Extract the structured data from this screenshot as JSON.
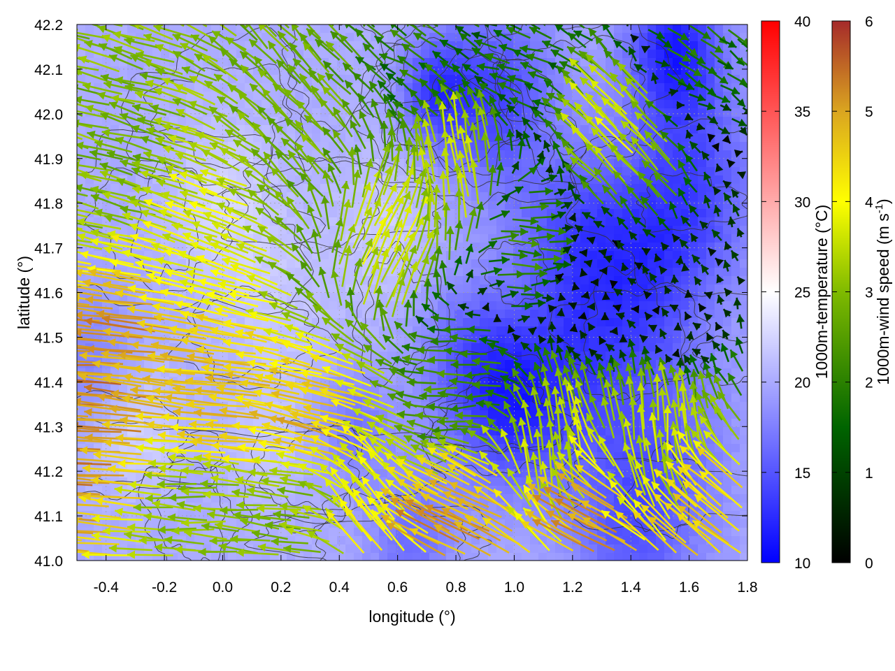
{
  "chart_data": {
    "type": "heatmap",
    "subtype": "temperature field with wind-vector arrows and terrain contours",
    "xlabel": "longitude (°)",
    "ylabel": "latitude (°)",
    "xlim": [
      -0.5,
      1.8
    ],
    "ylim": [
      41.0,
      42.2
    ],
    "x_ticks": [
      -0.4,
      -0.2,
      0.0,
      0.2,
      0.4,
      0.6,
      0.8,
      1.0,
      1.2,
      1.4,
      1.6,
      1.8
    ],
    "x_tick_labels": [
      "-0.4",
      "-0.2",
      "0.0",
      "0.2",
      "0.4",
      "0.6",
      "0.8",
      "1.0",
      "1.2",
      "1.4",
      "1.6",
      "1.8"
    ],
    "y_ticks": [
      41.0,
      41.1,
      41.2,
      41.3,
      41.4,
      41.5,
      41.6,
      41.7,
      41.8,
      41.9,
      42.0,
      42.1,
      42.2
    ],
    "y_tick_labels": [
      "41.0",
      "41.1",
      "41.2",
      "41.3",
      "41.4",
      "41.5",
      "41.6",
      "41.7",
      "41.8",
      "41.9",
      "42.0",
      "42.1",
      "42.2"
    ],
    "grid": true,
    "colorbars": [
      {
        "label": "1000m-temperature (°C)",
        "range": [
          10,
          40
        ],
        "ticks": [
          10,
          15,
          20,
          25,
          30,
          35,
          40
        ],
        "tick_labels": [
          "10",
          "15",
          "20",
          "25",
          "30",
          "35",
          "40"
        ],
        "stops": [
          {
            "value": 10,
            "color": "#0000ff"
          },
          {
            "value": 25,
            "color": "#ffffff"
          },
          {
            "value": 40,
            "color": "#ff0000"
          }
        ]
      },
      {
        "label_main": "1000m-wind speed (m s",
        "label_sup": "-1",
        "label_end": ")",
        "range": [
          0,
          6
        ],
        "ticks": [
          0,
          1,
          2,
          3,
          4,
          5,
          6
        ],
        "tick_labels": [
          "0",
          "1",
          "2",
          "3",
          "4",
          "5",
          "6"
        ],
        "stops": [
          {
            "value": 0,
            "color": "#000000"
          },
          {
            "value": 1.5,
            "color": "#006400"
          },
          {
            "value": 3,
            "color": "#7fba00"
          },
          {
            "value": 4,
            "color": "#ffff00"
          },
          {
            "value": 5,
            "color": "#daa520"
          },
          {
            "value": 6,
            "color": "#a52a2a"
          }
        ]
      }
    ],
    "temperature_field": {
      "background": 20,
      "cold_spots": [
        {
          "x": 1.55,
          "y": 42.15,
          "t": 12,
          "r": 0.16
        },
        {
          "x": 0.95,
          "y": 42.03,
          "t": 14,
          "r": 0.2
        },
        {
          "x": 0.73,
          "y": 42.05,
          "t": 14,
          "r": 0.12
        },
        {
          "x": 1.62,
          "y": 41.85,
          "t": 15,
          "r": 0.22
        },
        {
          "x": 1.45,
          "y": 41.65,
          "t": 15,
          "r": 0.22
        },
        {
          "x": 1.0,
          "y": 41.33,
          "t": 14.5,
          "r": 0.18
        },
        {
          "x": 0.85,
          "y": 41.45,
          "t": 15.5,
          "r": 0.18
        },
        {
          "x": 1.2,
          "y": 41.45,
          "t": 15.5,
          "r": 0.22
        },
        {
          "x": 1.5,
          "y": 41.25,
          "t": 16.5,
          "r": 0.25
        },
        {
          "x": 1.4,
          "y": 41.05,
          "t": 16.5,
          "r": 0.2
        },
        {
          "x": 0.65,
          "y": 41.05,
          "t": 16.5,
          "r": 0.15
        },
        {
          "x": 1.2,
          "y": 41.75,
          "t": 15.8,
          "r": 0.2
        },
        {
          "x": 0.45,
          "y": 41.3,
          "t": 16.8,
          "r": 0.12
        },
        {
          "x": -0.45,
          "y": 41.45,
          "t": 17.5,
          "r": 0.15
        }
      ],
      "warm_spots": [
        {
          "x": 0.55,
          "y": 41.75,
          "t": 22,
          "r": 0.18
        },
        {
          "x": 0.0,
          "y": 41.8,
          "t": 22.5,
          "r": 0.2
        },
        {
          "x": -0.3,
          "y": 41.3,
          "t": 22.5,
          "r": 0.15
        },
        {
          "x": 0.2,
          "y": 41.55,
          "t": 21.5,
          "r": 0.2
        },
        {
          "x": 1.1,
          "y": 41.95,
          "t": 21,
          "r": 0.12
        },
        {
          "x": 0.15,
          "y": 41.25,
          "t": 21.5,
          "r": 0.15
        }
      ]
    },
    "wind_field": {
      "regions": [
        {
          "x": -0.4,
          "y": 41.35,
          "u": -5.2,
          "v": 0.3
        },
        {
          "x": -0.2,
          "y": 41.45,
          "u": -5,
          "v": 0.6
        },
        {
          "x": 0.1,
          "y": 41.35,
          "u": -4.6,
          "v": 0.5
        },
        {
          "x": 0.4,
          "y": 41.3,
          "u": -4.5,
          "v": 1.2
        },
        {
          "x": 0.5,
          "y": 41.1,
          "u": -2.5,
          "v": 3
        },
        {
          "x": 0.3,
          "y": 41.1,
          "u": -3,
          "v": 0.3
        },
        {
          "x": 0.0,
          "y": 41.1,
          "u": -3,
          "v": 0.2
        },
        {
          "x": 0.0,
          "y": 41.7,
          "u": -3.5,
          "v": 1.2
        },
        {
          "x": -0.3,
          "y": 41.9,
          "u": -2.8,
          "v": 0.8
        },
        {
          "x": 0.3,
          "y": 41.95,
          "u": -2,
          "v": 2
        },
        {
          "x": 0.55,
          "y": 41.7,
          "u": 1.5,
          "v": 3.2
        },
        {
          "x": 0.8,
          "y": 41.85,
          "u": -0.5,
          "v": 3.5
        },
        {
          "x": 0.7,
          "y": 42.1,
          "u": -1.5,
          "v": 1
        },
        {
          "x": 1.0,
          "y": 41.7,
          "u": 2,
          "v": 0
        },
        {
          "x": 1.3,
          "y": 41.6,
          "u": -0.3,
          "v": 0.2
        },
        {
          "x": 1.55,
          "y": 41.55,
          "u": -0.2,
          "v": 0.4
        },
        {
          "x": 1.4,
          "y": 41.95,
          "u": -2.5,
          "v": 2.5
        },
        {
          "x": 1.6,
          "y": 42.15,
          "u": 1.5,
          "v": -1
        },
        {
          "x": 1.05,
          "y": 42.15,
          "u": -1.5,
          "v": 0.5
        },
        {
          "x": 0.85,
          "y": 41.4,
          "u": -2.2,
          "v": 0
        },
        {
          "x": 1.15,
          "y": 41.2,
          "u": -0.5,
          "v": 3.5
        },
        {
          "x": 1.5,
          "y": 41.25,
          "u": -0.3,
          "v": 3.4
        },
        {
          "x": 1.3,
          "y": 41.05,
          "u": -4.5,
          "v": 2.2
        },
        {
          "x": 0.9,
          "y": 41.05,
          "u": -4.5,
          "v": 2.2
        },
        {
          "x": 1.7,
          "y": 41.05,
          "u": -3.5,
          "v": 2.8
        }
      ]
    }
  }
}
